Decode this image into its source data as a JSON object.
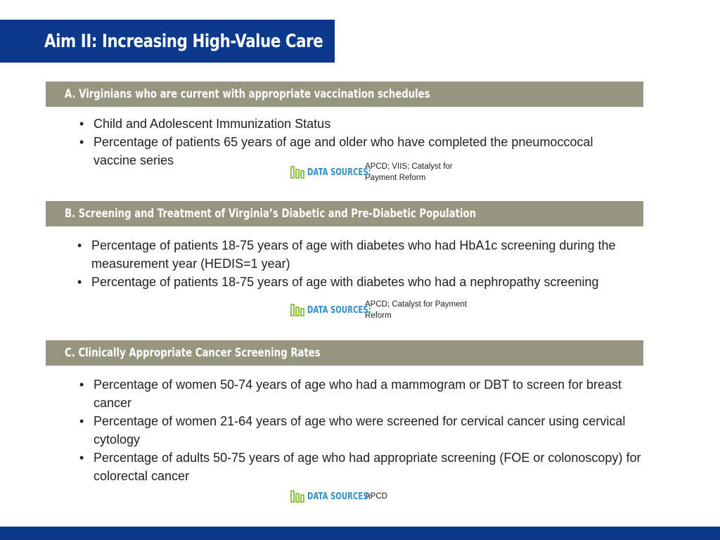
{
  "title": "Aim II: Increasing High-Value Care",
  "sections": [
    {
      "header": "A. Virginians who are current with appropriate vaccination schedules",
      "bullets": [
        "Child and Adolescent Immunization Status",
        "Percentage of patients 65 years of age and older who have completed the pneumoccocal vaccine series"
      ],
      "sources_label": "DATA SOURCES:",
      "sources": "APCD; VIIS; Catalyst for Payment Reform"
    },
    {
      "header": "B.  Screening and Treatment of Virginia’s Diabetic and Pre-Diabetic Population",
      "bullets": [
        "Percentage of patients 18-75 years of age with diabetes who had HbA1c screening during the measurement year (HEDIS=1 year)",
        "Percentage of patients 18-75 years of age with diabetes who had a nephropathy screening"
      ],
      "sources_label": "DATA SOURCES:",
      "sources": "APCD; Catalyst for Payment Reform"
    },
    {
      "header": "C.  Clinically Appropriate Cancer Screening Rates",
      "bullets": [
        "Percentage of women 50-74 years of age who had a mammogram or DBT to screen for breast cancer",
        "Percentage of women 21-64 years of age who were screened for cervical cancer using cervical cytology",
        "Percentage of adults 50-75 years of age who had appropriate screening (FOE or colonoscopy) for colorectal cancer"
      ],
      "sources_label": "DATA SOURCES:",
      "sources": "APCD"
    }
  ],
  "colors": {
    "title_bar": "#0b3a8c",
    "section_header": "#96967f",
    "sources_label": "#2f8fc7",
    "sources_icon": "#8cc63f"
  }
}
